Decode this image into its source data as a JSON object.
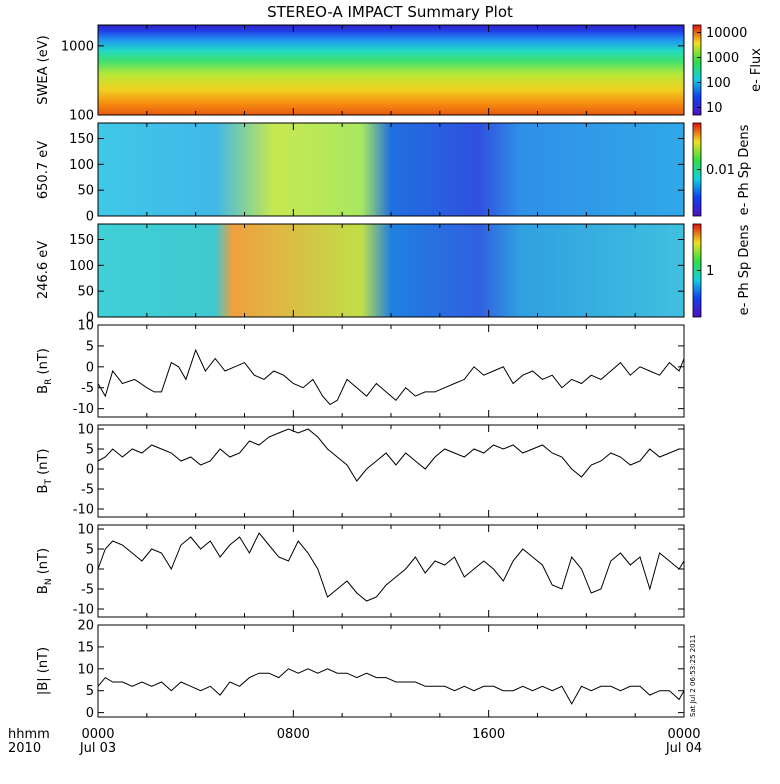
{
  "title": "STEREO-A IMPACT Summary Plot",
  "timestamp": "Sat Jul  2 06:53:25 2011",
  "time_axis": {
    "corner_top": "hhmm",
    "corner_bottom": "2010",
    "ticks": [
      {
        "hours": 0,
        "top": "0000",
        "bottom": "Jul 03"
      },
      {
        "hours": 8,
        "top": "0800",
        "bottom": ""
      },
      {
        "hours": 16,
        "top": "1600",
        "bottom": ""
      },
      {
        "hours": 24,
        "top": "0000",
        "bottom": "Jul 04"
      }
    ],
    "range_hours": [
      0,
      24
    ]
  },
  "colors": {
    "trace": "#000000",
    "frame": "#000000",
    "background": "#ffffff"
  },
  "chart_data": [
    {
      "type": "heatmap",
      "ylabel": "SWEA (eV)",
      "y_scale": "log",
      "ylim": [
        100,
        2000
      ],
      "yticks": [
        {
          "value": 1000,
          "label": "1000"
        },
        {
          "value": 100,
          "label": "100"
        }
      ],
      "colorbar": {
        "label": "e- Flux",
        "scale": "log",
        "range": [
          5,
          20000
        ],
        "ticks": [
          {
            "value": 10000,
            "label": "10000"
          },
          {
            "value": 1000,
            "label": "1000"
          },
          {
            "value": 100,
            "label": "100"
          },
          {
            "value": 10,
            "label": "10"
          }
        ]
      }
    },
    {
      "type": "heatmap",
      "ylabel": "650.7 eV",
      "ylim": [
        0,
        180
      ],
      "yticks": [
        {
          "value": 0,
          "label": "0"
        },
        {
          "value": 50,
          "label": "50"
        },
        {
          "value": 100,
          "label": "100"
        },
        {
          "value": 150,
          "label": "150"
        }
      ],
      "colorbar": {
        "label": "e- Ph Sp Dens",
        "scale": "log",
        "range": [
          0.001,
          0.1
        ],
        "ticks": [
          {
            "value": 0.01,
            "label": "0.01"
          }
        ]
      }
    },
    {
      "type": "heatmap",
      "ylabel": "246.6 eV",
      "ylim": [
        0,
        180
      ],
      "yticks": [
        {
          "value": 0,
          "label": "0"
        },
        {
          "value": 50,
          "label": "50"
        },
        {
          "value": 100,
          "label": "100"
        },
        {
          "value": 150,
          "label": "150"
        }
      ],
      "colorbar": {
        "label": "e- Ph Sp Dens",
        "scale": "log",
        "range": [
          0.1,
          10
        ],
        "ticks": [
          {
            "value": 1,
            "label": "1"
          }
        ]
      }
    },
    {
      "type": "line",
      "ylabel": "B_R (nT)",
      "ylim": [
        -12,
        10
      ],
      "yticks": [
        {
          "value": 10,
          "label": "10"
        },
        {
          "value": 5,
          "label": "5"
        },
        {
          "value": 0,
          "label": "0"
        },
        {
          "value": -5,
          "label": "-5"
        },
        {
          "value": -10,
          "label": "-10"
        }
      ],
      "series": [
        {
          "x": [
            0.0,
            0.3,
            0.6,
            1.0,
            1.5,
            2.0,
            2.3,
            2.6,
            3.0,
            3.3,
            3.6,
            4.0,
            4.4,
            4.8,
            5.2,
            5.6,
            6.0,
            6.4,
            6.8,
            7.2,
            7.6,
            8.0,
            8.4,
            8.8,
            9.2,
            9.5,
            9.8,
            10.2,
            10.6,
            11.0,
            11.4,
            11.8,
            12.2,
            12.6,
            13.0,
            13.4,
            13.8,
            14.2,
            14.6,
            15.0,
            15.4,
            15.8,
            16.2,
            16.6,
            17.0,
            17.4,
            17.8,
            18.2,
            18.6,
            19.0,
            19.4,
            19.8,
            20.2,
            20.6,
            21.0,
            21.4,
            21.8,
            22.2,
            22.6,
            23.0,
            23.4,
            23.8,
            24.0
          ],
          "y": [
            -4,
            -7,
            -1,
            -4,
            -3,
            -5,
            -6,
            -6,
            1,
            0,
            -3,
            4,
            -1,
            2,
            -1,
            0,
            1,
            -2,
            -3,
            -1,
            -2,
            -4,
            -5,
            -3,
            -7,
            -9,
            -8,
            -3,
            -5,
            -7,
            -4,
            -6,
            -8,
            -5,
            -7,
            -6,
            -6,
            -5,
            -4,
            -3,
            0,
            -2,
            -1,
            0,
            -4,
            -2,
            -1,
            -3,
            -2,
            -5,
            -3,
            -4,
            -2,
            -3,
            -1,
            1,
            -2,
            0,
            -1,
            -2,
            1,
            -1,
            2
          ]
        }
      ]
    },
    {
      "type": "line",
      "ylabel": "B_T (nT)",
      "ylim": [
        -12,
        11
      ],
      "yticks": [
        {
          "value": 10,
          "label": "10"
        },
        {
          "value": 5,
          "label": "5"
        },
        {
          "value": 0,
          "label": "0"
        },
        {
          "value": -5,
          "label": "-5"
        },
        {
          "value": -10,
          "label": "-10"
        }
      ],
      "series": [
        {
          "x": [
            0.0,
            0.3,
            0.6,
            1.0,
            1.4,
            1.8,
            2.2,
            2.6,
            3.0,
            3.4,
            3.8,
            4.2,
            4.6,
            5.0,
            5.4,
            5.8,
            6.2,
            6.6,
            7.0,
            7.4,
            7.8,
            8.2,
            8.6,
            9.0,
            9.4,
            9.8,
            10.2,
            10.6,
            11.0,
            11.4,
            11.8,
            12.2,
            12.6,
            13.0,
            13.4,
            13.8,
            14.2,
            14.6,
            15.0,
            15.4,
            15.8,
            16.2,
            16.6,
            17.0,
            17.4,
            17.8,
            18.2,
            18.6,
            19.0,
            19.4,
            19.8,
            20.2,
            20.6,
            21.0,
            21.4,
            21.8,
            22.2,
            22.6,
            23.0,
            23.4,
            23.8,
            24.0
          ],
          "y": [
            2,
            3,
            5,
            3,
            5,
            4,
            6,
            5,
            4,
            2,
            3,
            1,
            2,
            5,
            3,
            4,
            7,
            6,
            8,
            9,
            10,
            9,
            10,
            8,
            5,
            3,
            1,
            -3,
            0,
            2,
            4,
            1,
            4,
            2,
            0,
            3,
            5,
            4,
            3,
            5,
            4,
            6,
            5,
            6,
            4,
            5,
            6,
            4,
            3,
            0,
            -2,
            1,
            2,
            4,
            3,
            1,
            2,
            5,
            3,
            4,
            5,
            5
          ]
        }
      ]
    },
    {
      "type": "line",
      "ylabel": "B_N (nT)",
      "ylim": [
        -12,
        11
      ],
      "yticks": [
        {
          "value": 10,
          "label": "10"
        },
        {
          "value": 5,
          "label": "5"
        },
        {
          "value": 0,
          "label": "0"
        },
        {
          "value": -5,
          "label": "-5"
        },
        {
          "value": -10,
          "label": "-10"
        }
      ],
      "series": [
        {
          "x": [
            0.0,
            0.3,
            0.6,
            1.0,
            1.4,
            1.8,
            2.2,
            2.6,
            3.0,
            3.4,
            3.8,
            4.2,
            4.6,
            5.0,
            5.4,
            5.8,
            6.2,
            6.6,
            7.0,
            7.4,
            7.8,
            8.2,
            8.6,
            9.0,
            9.4,
            9.8,
            10.2,
            10.6,
            11.0,
            11.4,
            11.8,
            12.2,
            12.6,
            13.0,
            13.4,
            13.8,
            14.2,
            14.6,
            15.0,
            15.4,
            15.8,
            16.2,
            16.6,
            17.0,
            17.4,
            17.8,
            18.2,
            18.6,
            19.0,
            19.4,
            19.8,
            20.2,
            20.6,
            21.0,
            21.4,
            21.8,
            22.2,
            22.6,
            23.0,
            23.4,
            23.8,
            24.0
          ],
          "y": [
            0,
            5,
            7,
            6,
            4,
            2,
            5,
            4,
            0,
            6,
            8,
            5,
            7,
            3,
            6,
            8,
            4,
            9,
            6,
            3,
            2,
            7,
            4,
            0,
            -7,
            -5,
            -3,
            -6,
            -8,
            -7,
            -4,
            -2,
            0,
            3,
            -1,
            2,
            1,
            3,
            -2,
            0,
            2,
            0,
            -3,
            2,
            5,
            3,
            1,
            -4,
            -5,
            3,
            0,
            -6,
            -5,
            2,
            4,
            1,
            3,
            -5,
            4,
            2,
            0,
            2
          ]
        }
      ]
    },
    {
      "type": "line",
      "ylabel": "|B| (nT)",
      "ylim": [
        -1,
        20
      ],
      "yticks": [
        {
          "value": 20,
          "label": "20"
        },
        {
          "value": 15,
          "label": "15"
        },
        {
          "value": 10,
          "label": "10"
        },
        {
          "value": 5,
          "label": "5"
        },
        {
          "value": 0,
          "label": "0"
        }
      ],
      "series": [
        {
          "x": [
            0.0,
            0.3,
            0.6,
            1.0,
            1.4,
            1.8,
            2.2,
            2.6,
            3.0,
            3.4,
            3.8,
            4.2,
            4.6,
            5.0,
            5.4,
            5.8,
            6.2,
            6.6,
            7.0,
            7.4,
            7.8,
            8.2,
            8.6,
            9.0,
            9.4,
            9.8,
            10.2,
            10.6,
            11.0,
            11.4,
            11.8,
            12.2,
            12.6,
            13.0,
            13.4,
            13.8,
            14.2,
            14.6,
            15.0,
            15.4,
            15.8,
            16.2,
            16.6,
            17.0,
            17.4,
            17.8,
            18.2,
            18.6,
            19.0,
            19.4,
            19.8,
            20.2,
            20.6,
            21.0,
            21.4,
            21.8,
            22.2,
            22.6,
            23.0,
            23.4,
            23.8,
            24.0
          ],
          "y": [
            6,
            8,
            7,
            7,
            6,
            7,
            6,
            7,
            5,
            7,
            6,
            5,
            6,
            4,
            7,
            6,
            8,
            9,
            9,
            8,
            10,
            9,
            10,
            9,
            10,
            9,
            9,
            8,
            9,
            8,
            8,
            7,
            7,
            7,
            6,
            6,
            6,
            5,
            6,
            5,
            6,
            6,
            5,
            5,
            6,
            5,
            6,
            5,
            6,
            2,
            6,
            5,
            6,
            6,
            5,
            6,
            6,
            4,
            5,
            5,
            3,
            5
          ]
        }
      ]
    }
  ]
}
